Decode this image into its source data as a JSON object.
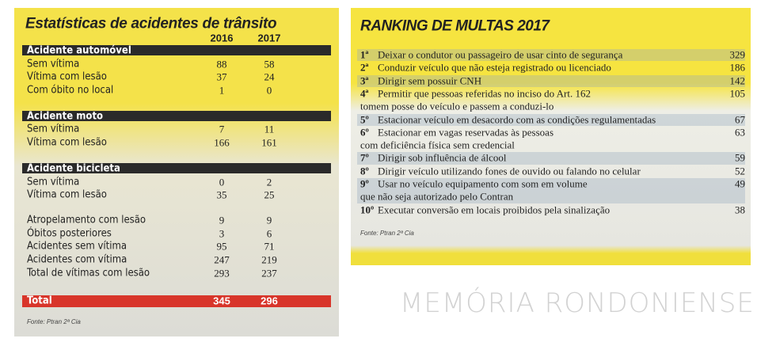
{
  "left": {
    "title": "Estatísticas de acidentes de trânsito",
    "columns": [
      "2016",
      "2017"
    ],
    "sections": [
      {
        "heading": "Acidente automóvel",
        "rows": [
          {
            "label": "Sem vítima",
            "values": [
              "88",
              "58"
            ]
          },
          {
            "label": "Vítima com lesão",
            "values": [
              "37",
              "24"
            ]
          },
          {
            "label": "Com óbito no local",
            "values": [
              "1",
              "0"
            ]
          }
        ]
      },
      {
        "heading": "Acidente moto",
        "rows": [
          {
            "label": "Sem vítima",
            "values": [
              "7",
              "11"
            ]
          },
          {
            "label": "Vítima com lesão",
            "values": [
              "166",
              "161"
            ]
          }
        ]
      },
      {
        "heading": "Acidente bicicleta",
        "rows": [
          {
            "label": "Sem vítima",
            "values": [
              "0",
              "2"
            ]
          },
          {
            "label": "Vítima com lesão",
            "values": [
              "35",
              "25"
            ]
          }
        ]
      }
    ],
    "rows": [
      {
        "label": "Atropelamento com lesão",
        "values": [
          "9",
          "9"
        ]
      },
      {
        "label": "Óbitos posteriores",
        "values": [
          "3",
          "6"
        ]
      },
      {
        "label": "Acidentes sem vítima",
        "values": [
          "95",
          "71"
        ]
      },
      {
        "label": "Acidentes com vítima",
        "values": [
          "247",
          "219"
        ]
      },
      {
        "label": "Total de vítimas com lesão",
        "values": [
          "293",
          "237"
        ]
      }
    ],
    "total": {
      "label": "Total",
      "values": [
        "345",
        "296"
      ]
    },
    "source": "Fonte: Ptran 2ª Cia"
  },
  "right": {
    "title": "RANKING DE MULTAS 2017",
    "items": [
      {
        "rank": "1ª",
        "lines": [
          "Deixar o condutor ou passageiro de usar cinto de segurança"
        ],
        "value": "329"
      },
      {
        "rank": "2ª",
        "lines": [
          "Conduzir veículo que não esteja registrado ou licenciado"
        ],
        "value": "186"
      },
      {
        "rank": "3ª",
        "lines": [
          "Dirigir sem possuir CNH"
        ],
        "value": "142"
      },
      {
        "rank": "4ª",
        "lines": [
          "Permitir que pessoas referidas no inciso do Art. 162",
          "tomem posse do veículo e passem a conduzi-lo"
        ],
        "value": "105"
      },
      {
        "rank": "5º",
        "lines": [
          "Estacionar veículo em desacordo com as condições regulamentadas"
        ],
        "value": "67"
      },
      {
        "rank": "6º",
        "lines": [
          "Estacionar em vagas reservadas às pessoas",
          "com deficiência física sem credencial"
        ],
        "value": "63"
      },
      {
        "rank": "7º",
        "lines": [
          "Dirigir sob influência de álcool"
        ],
        "value": "59"
      },
      {
        "rank": "8º",
        "lines": [
          "Dirigir veículo utilizando fones de ouvido ou falando no celular"
        ],
        "value": "52"
      },
      {
        "rank": "9º",
        "lines": [
          "Usar no veículo equipamento com som em volume",
          "que não seja autorizado pelo Contran"
        ],
        "value": "49"
      },
      {
        "rank": "10º",
        "lines": [
          "Executar conversão em locais proibidos pela sinalização"
        ],
        "value": "38"
      }
    ],
    "source": "Fonte: Ptran 2ª Cia"
  },
  "watermark": "MEMÓRIA RONDONIENSE"
}
